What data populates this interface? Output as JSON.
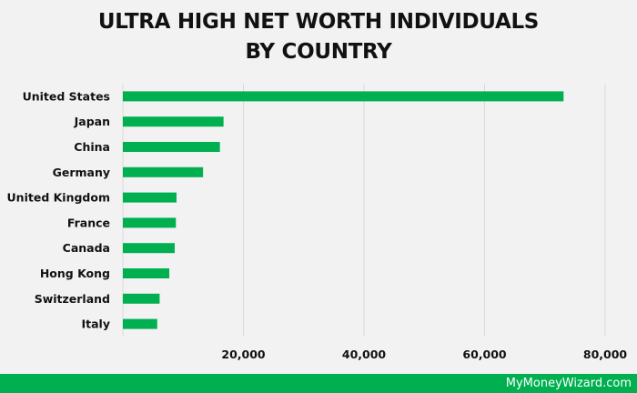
{
  "chart_data": {
    "type": "bar",
    "orientation": "horizontal",
    "title_lines": [
      "ULTRA HIGH NET WORTH INDIVIDUALS",
      "BY COUNTRY"
    ],
    "categories": [
      "United States",
      "Japan",
      "China",
      "Germany",
      "United Kingdom",
      "France",
      "Canada",
      "Hong Kong",
      "Switzerland",
      "Italy"
    ],
    "values": [
      73100,
      16700,
      16100,
      13300,
      8900,
      8800,
      8600,
      7700,
      6100,
      5700
    ],
    "xlim": [
      0,
      80000
    ],
    "xticks": [
      20000,
      40000,
      60000,
      80000
    ],
    "xtick_labels": [
      "20,000",
      "40,000",
      "60,000",
      "80,000"
    ],
    "grid": "vertical",
    "legend": "none"
  },
  "colors": {
    "bar": "#00b050",
    "background": "#f2f2f2",
    "gridline": "#d9d9d9",
    "footer": "#00b050"
  },
  "footer": {
    "text": "MyMoneyWizard.com"
  }
}
